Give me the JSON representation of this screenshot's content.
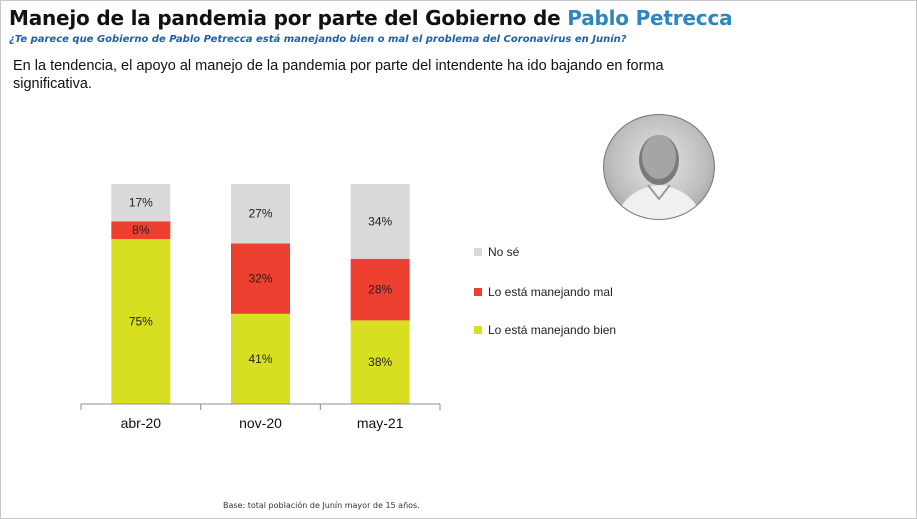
{
  "header": {
    "title_prefix": "Manejo de la pandemia por parte del Gobierno de ",
    "title_name": "Pablo Petrecca",
    "subtitle": "¿Te parece que Gobierno de Pablo Petrecca está manejando bien o mal el problema del Coronavirus en Junín?",
    "description": "En la tendencia, el apoyo al manejo de la pandemia por parte del intendente ha ido bajando en forma significativa."
  },
  "footnote": "Base: total población de Junín mayor de 15 años.",
  "colors": {
    "no_se": "#d9d9d9",
    "mal": "#ee4030",
    "bien": "#d8df21"
  },
  "chart_data": {
    "type": "bar",
    "stacked": true,
    "categories": [
      "abr-20",
      "nov-20",
      "may-21"
    ],
    "series": [
      {
        "name": "Lo está manejando bien",
        "values": [
          75,
          41,
          38
        ],
        "labels": [
          "75%",
          "41%",
          "38%"
        ],
        "color": "#d8df21"
      },
      {
        "name": "Lo está manejando mal",
        "values": [
          8,
          32,
          28
        ],
        "labels": [
          "8%",
          "32%",
          "28%"
        ],
        "color": "#ee4030"
      },
      {
        "name": "No sé",
        "values": [
          17,
          27,
          34
        ],
        "labels": [
          "17%",
          "27%",
          "34%"
        ],
        "color": "#d9d9d9"
      }
    ],
    "legend": [
      "No sé",
      "Lo está manejando mal",
      "Lo está manejando bien"
    ],
    "ylim": [
      0,
      100
    ],
    "legend_position": "right"
  }
}
